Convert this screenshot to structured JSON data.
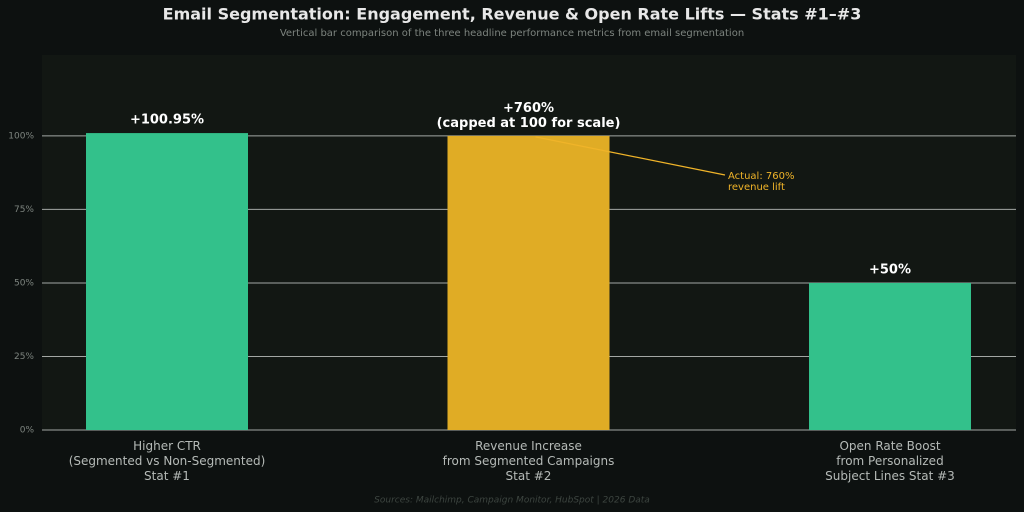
{
  "chart_data": {
    "type": "bar",
    "title": "Email Segmentation: Engagement, Revenue & Open Rate Lifts — Stats #1–#3",
    "subtitle": "Vertical bar comparison of the three headline performance metrics from email segmentation",
    "categories": [
      "Higher CTR\n(Segmented vs Non-Segmented)\nStat #1",
      "Revenue Increase\nfrom Segmented Campaigns\nStat #2",
      "Open Rate Boost\nfrom Personalized\nSubject Lines Stat #3"
    ],
    "values": [
      100.95,
      100,
      50
    ],
    "value_labels": [
      "+100.95%",
      null,
      "+50%"
    ],
    "colors": [
      "#33c18b",
      "#e0ac25",
      "#33c18b"
    ],
    "ylim": [
      0,
      127.5
    ],
    "yticks": [
      {
        "value": 0,
        "label": "0%"
      },
      {
        "value": 25,
        "label": "25%"
      },
      {
        "value": 50,
        "label": "50%"
      },
      {
        "value": 75,
        "label": "75%"
      },
      {
        "value": 100,
        "label": "100%"
      }
    ],
    "grid": true,
    "annotations": [
      {
        "text": "+760%\n(capped at 100 for scale)",
        "color": "#ffffff"
      },
      {
        "text": "Actual: 760%\nrevenue lift",
        "color": "#f0b429"
      }
    ],
    "footer": "Sources: Mailchimp, Campaign Monitor, HubSpot  |  2026 Data"
  }
}
